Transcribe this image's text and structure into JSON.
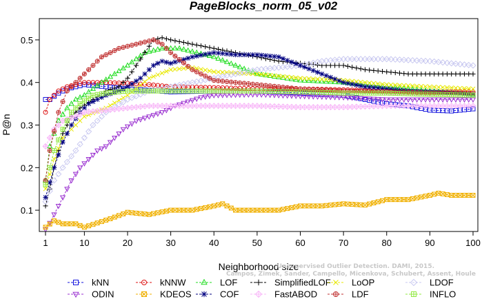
{
  "chart_data": {
    "type": "line",
    "title": "PageBlocks_norm_05_v02",
    "xlabel": "Neighborhood size",
    "ylabel": "P@n",
    "xlim": [
      1,
      100
    ],
    "ylim": [
      0.05,
      0.55
    ],
    "xticks": [
      1,
      10,
      20,
      30,
      40,
      50,
      60,
      70,
      80,
      90,
      100
    ],
    "yticks": [
      0.1,
      0.2,
      0.3,
      0.4,
      0.5
    ],
    "grid": false,
    "legend_position": "bottom",
    "series": [
      {
        "name": "kNN",
        "color": "#1010dd",
        "marker": "square",
        "points": [
          [
            1,
            0.36
          ],
          [
            2,
            0.36
          ],
          [
            4,
            0.375
          ],
          [
            6,
            0.385
          ],
          [
            8,
            0.39
          ],
          [
            10,
            0.395
          ],
          [
            15,
            0.39
          ],
          [
            20,
            0.385
          ],
          [
            30,
            0.378
          ],
          [
            40,
            0.38
          ],
          [
            50,
            0.38
          ],
          [
            60,
            0.375
          ],
          [
            70,
            0.37
          ],
          [
            75,
            0.36
          ],
          [
            80,
            0.35
          ],
          [
            85,
            0.345
          ],
          [
            90,
            0.335
          ],
          [
            95,
            0.333
          ],
          [
            100,
            0.338
          ]
        ]
      },
      {
        "name": "kNNW",
        "color": "#dd1010",
        "marker": "circle",
        "points": [
          [
            1,
            0.33
          ],
          [
            2,
            0.36
          ],
          [
            4,
            0.38
          ],
          [
            6,
            0.39
          ],
          [
            8,
            0.395
          ],
          [
            10,
            0.4
          ],
          [
            15,
            0.4
          ],
          [
            20,
            0.398
          ],
          [
            25,
            0.395
          ],
          [
            30,
            0.39
          ],
          [
            40,
            0.388
          ],
          [
            50,
            0.385
          ],
          [
            60,
            0.385
          ],
          [
            70,
            0.383
          ],
          [
            80,
            0.38
          ],
          [
            90,
            0.378
          ],
          [
            100,
            0.378
          ]
        ]
      },
      {
        "name": "LOF",
        "color": "#20dd20",
        "marker": "triangle",
        "points": [
          [
            1,
            0.17
          ],
          [
            2,
            0.25
          ],
          [
            4,
            0.31
          ],
          [
            6,
            0.34
          ],
          [
            8,
            0.36
          ],
          [
            10,
            0.37
          ],
          [
            14,
            0.4
          ],
          [
            17,
            0.42
          ],
          [
            20,
            0.44
          ],
          [
            24,
            0.47
          ],
          [
            28,
            0.48
          ],
          [
            32,
            0.48
          ],
          [
            36,
            0.47
          ],
          [
            40,
            0.46
          ],
          [
            45,
            0.44
          ],
          [
            50,
            0.42
          ],
          [
            60,
            0.405
          ],
          [
            70,
            0.4
          ],
          [
            80,
            0.39
          ],
          [
            90,
            0.38
          ],
          [
            100,
            0.372
          ]
        ]
      },
      {
        "name": "SimplifiedLOF",
        "color": "#000000",
        "marker": "plus",
        "points": [
          [
            1,
            0.11
          ],
          [
            2,
            0.15
          ],
          [
            3,
            0.2
          ],
          [
            5,
            0.28
          ],
          [
            7,
            0.32
          ],
          [
            9,
            0.34
          ],
          [
            12,
            0.36
          ],
          [
            15,
            0.38
          ],
          [
            18,
            0.39
          ],
          [
            20,
            0.41
          ],
          [
            22,
            0.44
          ],
          [
            24,
            0.47
          ],
          [
            26,
            0.5
          ],
          [
            28,
            0.505
          ],
          [
            30,
            0.5
          ],
          [
            35,
            0.49
          ],
          [
            40,
            0.48
          ],
          [
            45,
            0.47
          ],
          [
            50,
            0.46
          ],
          [
            55,
            0.45
          ],
          [
            60,
            0.445
          ],
          [
            65,
            0.44
          ],
          [
            70,
            0.44
          ],
          [
            75,
            0.43
          ],
          [
            80,
            0.425
          ],
          [
            85,
            0.42
          ],
          [
            90,
            0.42
          ],
          [
            95,
            0.42
          ],
          [
            100,
            0.42
          ]
        ]
      },
      {
        "name": "LoOP",
        "color": "#e8e800",
        "marker": "x",
        "points": [
          [
            1,
            0.15
          ],
          [
            3,
            0.22
          ],
          [
            5,
            0.27
          ],
          [
            8,
            0.3
          ],
          [
            10,
            0.32
          ],
          [
            15,
            0.34
          ],
          [
            20,
            0.37
          ],
          [
            25,
            0.41
          ],
          [
            30,
            0.43
          ],
          [
            35,
            0.435
          ],
          [
            40,
            0.425
          ],
          [
            50,
            0.42
          ],
          [
            60,
            0.41
          ],
          [
            70,
            0.405
          ],
          [
            80,
            0.395
          ],
          [
            90,
            0.39
          ],
          [
            100,
            0.385
          ]
        ]
      },
      {
        "name": "LDOF",
        "color": "#c8c8f0",
        "marker": "diamond",
        "points": [
          [
            1,
            0.12
          ],
          [
            3,
            0.17
          ],
          [
            5,
            0.2
          ],
          [
            8,
            0.24
          ],
          [
            10,
            0.27
          ],
          [
            12,
            0.3
          ],
          [
            15,
            0.33
          ],
          [
            20,
            0.36
          ],
          [
            25,
            0.38
          ],
          [
            30,
            0.39
          ],
          [
            40,
            0.41
          ],
          [
            50,
            0.43
          ],
          [
            60,
            0.44
          ],
          [
            65,
            0.45
          ],
          [
            70,
            0.455
          ],
          [
            80,
            0.455
          ],
          [
            90,
            0.45
          ],
          [
            95,
            0.445
          ],
          [
            100,
            0.44
          ]
        ]
      },
      {
        "name": "ODIN",
        "color": "#9a30d0",
        "marker": "triangle-down",
        "points": [
          [
            1,
            0.055
          ],
          [
            2,
            0.07
          ],
          [
            3,
            0.09
          ],
          [
            5,
            0.13
          ],
          [
            7,
            0.17
          ],
          [
            9,
            0.2
          ],
          [
            11,
            0.22
          ],
          [
            13,
            0.24
          ],
          [
            15,
            0.25
          ],
          [
            17,
            0.27
          ],
          [
            19,
            0.29
          ],
          [
            22,
            0.31
          ],
          [
            25,
            0.32
          ],
          [
            28,
            0.33
          ],
          [
            31,
            0.345
          ],
          [
            34,
            0.355
          ],
          [
            37,
            0.365
          ],
          [
            40,
            0.37
          ],
          [
            50,
            0.372
          ],
          [
            60,
            0.368
          ],
          [
            70,
            0.365
          ],
          [
            80,
            0.36
          ],
          [
            90,
            0.36
          ],
          [
            100,
            0.36
          ]
        ]
      },
      {
        "name": "KDEOS",
        "color": "#f0b000",
        "marker": "square-x",
        "points": [
          [
            1,
            0.06
          ],
          [
            3,
            0.075
          ],
          [
            5,
            0.068
          ],
          [
            8,
            0.068
          ],
          [
            10,
            0.06
          ],
          [
            13,
            0.07
          ],
          [
            16,
            0.08
          ],
          [
            20,
            0.095
          ],
          [
            25,
            0.09
          ],
          [
            30,
            0.1
          ],
          [
            35,
            0.1
          ],
          [
            40,
            0.11
          ],
          [
            42,
            0.115
          ],
          [
            45,
            0.1
          ],
          [
            50,
            0.1
          ],
          [
            55,
            0.1
          ],
          [
            60,
            0.11
          ],
          [
            65,
            0.11
          ],
          [
            70,
            0.115
          ],
          [
            75,
            0.112
          ],
          [
            80,
            0.125
          ],
          [
            85,
            0.125
          ],
          [
            90,
            0.135
          ],
          [
            92,
            0.14
          ],
          [
            95,
            0.135
          ],
          [
            100,
            0.135
          ]
        ]
      },
      {
        "name": "COF",
        "color": "#000080",
        "marker": "asterisk",
        "points": [
          [
            1,
            0.13
          ],
          [
            3,
            0.2
          ],
          [
            5,
            0.26
          ],
          [
            7,
            0.3
          ],
          [
            9,
            0.33
          ],
          [
            11,
            0.35
          ],
          [
            13,
            0.36
          ],
          [
            15,
            0.37
          ],
          [
            18,
            0.38
          ],
          [
            20,
            0.39
          ],
          [
            23,
            0.41
          ],
          [
            26,
            0.44
          ],
          [
            28,
            0.45
          ],
          [
            30,
            0.445
          ],
          [
            35,
            0.46
          ],
          [
            40,
            0.47
          ],
          [
            45,
            0.465
          ],
          [
            50,
            0.465
          ],
          [
            55,
            0.46
          ],
          [
            60,
            0.44
          ],
          [
            65,
            0.42
          ],
          [
            70,
            0.4
          ],
          [
            75,
            0.39
          ],
          [
            80,
            0.385
          ],
          [
            85,
            0.38
          ],
          [
            90,
            0.378
          ],
          [
            95,
            0.375
          ],
          [
            100,
            0.372
          ]
        ]
      },
      {
        "name": "FastABOD",
        "color": "#f8b8f8",
        "marker": "diamond-plus",
        "points": [
          [
            1,
            0.25
          ],
          [
            3,
            0.29
          ],
          [
            5,
            0.31
          ],
          [
            8,
            0.32
          ],
          [
            10,
            0.33
          ],
          [
            15,
            0.335
          ],
          [
            20,
            0.34
          ],
          [
            25,
            0.345
          ],
          [
            30,
            0.345
          ],
          [
            40,
            0.345
          ],
          [
            50,
            0.345
          ],
          [
            60,
            0.342
          ],
          [
            70,
            0.342
          ],
          [
            80,
            0.345
          ],
          [
            90,
            0.345
          ],
          [
            100,
            0.345
          ]
        ]
      },
      {
        "name": "LDF",
        "color": "#c03030",
        "marker": "circle-plus",
        "points": [
          [
            1,
            0.17
          ],
          [
            2,
            0.24
          ],
          [
            4,
            0.33
          ],
          [
            6,
            0.38
          ],
          [
            8,
            0.4
          ],
          [
            10,
            0.42
          ],
          [
            12,
            0.44
          ],
          [
            14,
            0.46
          ],
          [
            16,
            0.47
          ],
          [
            18,
            0.48
          ],
          [
            20,
            0.485
          ],
          [
            24,
            0.495
          ],
          [
            26,
            0.5
          ],
          [
            28,
            0.49
          ],
          [
            30,
            0.47
          ],
          [
            35,
            0.43
          ],
          [
            40,
            0.405
          ],
          [
            50,
            0.395
          ],
          [
            60,
            0.385
          ],
          [
            70,
            0.38
          ],
          [
            80,
            0.378
          ],
          [
            90,
            0.375
          ],
          [
            100,
            0.375
          ]
        ]
      },
      {
        "name": "INFLO",
        "color": "#90e840",
        "marker": "square-cross",
        "points": [
          [
            1,
            0.16
          ],
          [
            3,
            0.24
          ],
          [
            5,
            0.29
          ],
          [
            7,
            0.33
          ],
          [
            9,
            0.35
          ],
          [
            12,
            0.37
          ],
          [
            15,
            0.375
          ],
          [
            20,
            0.38
          ],
          [
            25,
            0.38
          ],
          [
            30,
            0.38
          ],
          [
            40,
            0.38
          ],
          [
            50,
            0.38
          ],
          [
            60,
            0.378
          ],
          [
            70,
            0.375
          ],
          [
            80,
            0.375
          ],
          [
            90,
            0.372
          ],
          [
            100,
            0.37
          ]
        ]
      }
    ],
    "watermark": [
      "Campos, Zimek, Sander, Campello, Micenkova, Schubert, Assent, Houle",
      "Unsupervised Outlier Detection. DAMI, 2015."
    ]
  }
}
